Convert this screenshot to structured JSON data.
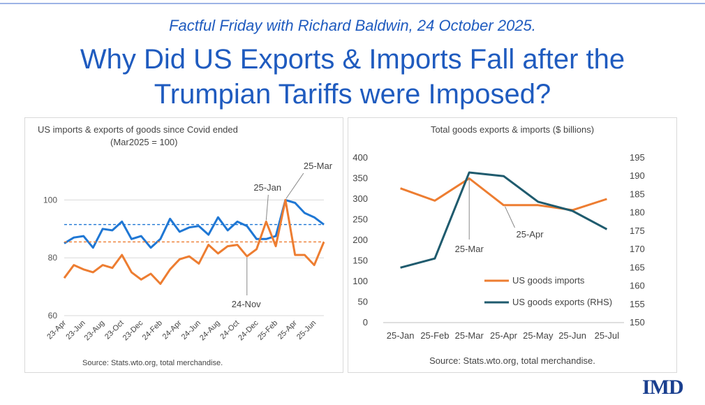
{
  "header": {
    "subtitle": "Factful Friday with Richard Baldwin, 24 October 2025.",
    "title_line1": "Why Did US Exports & Imports Fall after the",
    "title_line2": "Trumpian Tariffs were Imposed?"
  },
  "logo": {
    "text": "IMD"
  },
  "colors": {
    "title": "#1f5bbf",
    "exports": "#1f77d4",
    "imports": "#ed7d31",
    "exports_right": "#1f5b6e"
  },
  "chart_data": [
    {
      "type": "line",
      "title": "US imports & exports of goods since Covid ended",
      "subtitle": "(Mar2025 = 100)",
      "source": "Source: Stats.wto.org, total merchandise.",
      "ylim": [
        60,
        110
      ],
      "yticks": [
        60,
        80,
        100
      ],
      "xtick_labels": [
        "23-Apr",
        "23-Jun",
        "23-Aug",
        "23-Oct",
        "23-Dec",
        "24-Feb",
        "24-Apr",
        "24-Jun",
        "24-Aug",
        "24-Oct",
        "24-Dec",
        "25-Feb",
        "25-Apr",
        "25-Jun"
      ],
      "series": [
        {
          "name": "US goods exports",
          "color": "#1f77d4",
          "values": [
            85,
            87,
            87.5,
            83.5,
            90,
            89.5,
            92.5,
            86.5,
            87.5,
            83.5,
            86.5,
            93.5,
            89,
            90.5,
            91,
            88,
            94,
            89.5,
            92.5,
            91,
            86.5,
            86.5,
            87.5,
            100,
            99,
            95.5,
            94,
            91.5
          ],
          "reference": 91.5
        },
        {
          "name": "US goods imports",
          "color": "#ed7d31",
          "values": [
            73,
            77.5,
            76,
            75,
            77.5,
            76.5,
            81,
            75,
            72.5,
            74.5,
            71,
            76,
            79.5,
            80.5,
            78,
            84.5,
            81.5,
            84,
            84.5,
            80.5,
            83,
            92.5,
            84,
            100,
            81,
            81,
            77.5,
            85.5
          ],
          "reference": 85.5
        }
      ],
      "annotations": [
        {
          "label": "25-Mar",
          "index": 23
        },
        {
          "label": "25-Jan",
          "index": 21
        },
        {
          "label": "24-Nov",
          "index": 19
        }
      ]
    },
    {
      "type": "line",
      "title": "Total goods exports & imports ($ billions)",
      "source": "Source: Stats.wto.org, total merchandise.",
      "categories": [
        "25-Jan",
        "25-Feb",
        "25-Mar",
        "25-Apr",
        "25-May",
        "25-Jun",
        "25-Jul"
      ],
      "ylim": [
        0,
        400
      ],
      "yticks": [
        0,
        50,
        100,
        150,
        200,
        250,
        300,
        350,
        400
      ],
      "y2lim": [
        150,
        195
      ],
      "y2ticks": [
        150,
        155,
        160,
        165,
        170,
        175,
        180,
        185,
        190,
        195
      ],
      "series": [
        {
          "name": "US goods imports",
          "axis": "left",
          "color": "#ed7d31",
          "values": [
            326,
            296,
            350,
            285,
            285,
            273,
            300
          ]
        },
        {
          "name": "US goods exports (RHS)",
          "axis": "right",
          "color": "#1f5b6e",
          "values": [
            165,
            167.5,
            191,
            190,
            183,
            180.5,
            175.5
          ]
        }
      ],
      "annotations": [
        {
          "label": "25-Mar",
          "index": 2
        },
        {
          "label": "25-Apr",
          "index": 3
        }
      ]
    }
  ]
}
